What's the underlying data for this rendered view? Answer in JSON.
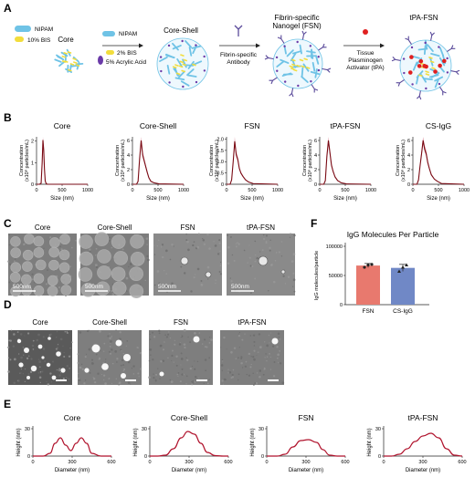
{
  "panel_letters": {
    "A": "A",
    "B": "B",
    "C": "C",
    "D": "D",
    "E": "E",
    "F": "F"
  },
  "panelA": {
    "nipam_1": "NIPAM",
    "bis_1": "10% BIS",
    "core": "Core",
    "nipam_2": "NIPAM",
    "bis_2": "2% BIS",
    "acrylic": "5% Acrylic Acid",
    "core_shell": "Core-Shell",
    "fsn_title_1": "Fibrin-specific",
    "fsn_title_2": "Nanogel (FSN)",
    "antibody_1": "Fibrin-specific",
    "antibody_2": "Antibody",
    "tpa_1": "Tissue",
    "tpa_2": "Plasminogen",
    "tpa_3": "Activator (tPA)",
    "tpa_fsn": "tPA-FSN",
    "colors": {
      "polymer": "#6fc3e6",
      "bis": "#f2dd3c",
      "acrylic": "#6a3aa8",
      "antibody": "#5a4a9a",
      "tpa": "#e02020"
    }
  },
  "panelB": {
    "ylabel_1": "Concentration",
    "ylabel_2": "(x10⁸ particles/mL)",
    "xlabel": "Size (nm)",
    "xticks": [
      "0",
      "500",
      "1000"
    ],
    "line_color": "#7a0a14",
    "charts": [
      {
        "title": "Core",
        "yticks": [
          "0",
          "1",
          "2"
        ],
        "ymax": 2.2
      },
      {
        "title": "Core-Shell",
        "yticks": [
          "0",
          "2",
          "4",
          "6"
        ],
        "ymax": 6.5
      },
      {
        "title": "FSN",
        "yticks": [
          "0",
          "0.5",
          "1.0",
          "1.5",
          "2.0"
        ],
        "ymax": 2.1
      },
      {
        "title": "tPA-FSN",
        "yticks": [
          "0",
          "2",
          "4",
          "6"
        ],
        "ymax": 6.5
      },
      {
        "title": "CS-IgG",
        "yticks": [
          "0",
          "2",
          "4",
          "6"
        ],
        "ymax": 6.5
      }
    ]
  },
  "panelC": {
    "titles": [
      "Core",
      "Core-Shell",
      "FSN",
      "tPA-FSN"
    ],
    "scale": "500nm"
  },
  "panelD": {
    "titles": [
      "Core",
      "Core-Shell",
      "FSN",
      "tPA-FSN"
    ]
  },
  "panelE": {
    "ylabel": "Height (nm)",
    "xlabel": "Diameter (nm)",
    "xticks": [
      "0",
      "300",
      "600"
    ],
    "yticks": [
      "0",
      "30"
    ],
    "titles": [
      "Core",
      "Core-Shell",
      "FSN",
      "tPA-FSN"
    ],
    "line_color": "#b0122c"
  },
  "panelF": {
    "title": "IgG Molecules Per Particle",
    "ylabel": "IgG molecules/particle",
    "yticks": [
      "0",
      "50000",
      "100000"
    ],
    "ylim": [
      0,
      100000
    ]
  },
  "chart_data": [
    {
      "type": "line",
      "title": "Core",
      "xlabel": "Size (nm)",
      "ylabel": "Concentration (x10⁸ particles/mL)",
      "xlim": [
        0,
        1000
      ],
      "ylim": [
        0,
        2.2
      ],
      "x": [
        0,
        60,
        90,
        110,
        125,
        140,
        155,
        170,
        190,
        220,
        300,
        1000
      ],
      "values": [
        0,
        0,
        0.05,
        1.0,
        2.05,
        1.6,
        0.7,
        0.15,
        0.02,
        0,
        0,
        0
      ]
    },
    {
      "type": "line",
      "title": "Core-Shell",
      "xlabel": "Size (nm)",
      "ylabel": "Concentration (x10⁸ particles/mL)",
      "xlim": [
        0,
        1000
      ],
      "ylim": [
        0,
        6.5
      ],
      "x": [
        0,
        80,
        110,
        140,
        170,
        200,
        230,
        260,
        290,
        320,
        360,
        420,
        520,
        1000
      ],
      "values": [
        0,
        0,
        0.4,
        3.5,
        6.0,
        4.0,
        3.2,
        2.4,
        1.6,
        0.9,
        0.4,
        0.2,
        0.05,
        0
      ]
    },
    {
      "type": "line",
      "title": "FSN",
      "xlabel": "Size (nm)",
      "ylabel": "Concentration (x10⁸ particles/mL)",
      "xlim": [
        0,
        1000
      ],
      "ylim": [
        0,
        2.1
      ],
      "x": [
        0,
        70,
        100,
        130,
        160,
        190,
        220,
        250,
        280,
        320,
        370,
        430,
        520,
        1000
      ],
      "values": [
        0,
        0,
        0.2,
        1.0,
        1.9,
        1.3,
        1.1,
        0.7,
        0.5,
        0.35,
        0.2,
        0.1,
        0.03,
        0
      ]
    },
    {
      "type": "line",
      "title": "tPA-FSN",
      "xlabel": "Size (nm)",
      "ylabel": "Concentration (x10⁸ particles/mL)",
      "xlim": [
        0,
        1000
      ],
      "ylim": [
        0,
        6.5
      ],
      "x": [
        0,
        80,
        110,
        140,
        170,
        200,
        230,
        260,
        300,
        350,
        420,
        520,
        1000
      ],
      "values": [
        0,
        0,
        0.5,
        3.8,
        6.0,
        4.3,
        2.6,
        1.8,
        1.0,
        0.5,
        0.2,
        0.05,
        0
      ]
    },
    {
      "type": "line",
      "title": "CS-IgG",
      "xlabel": "Size (nm)",
      "ylabel": "Concentration (x10⁸ particles/mL)",
      "xlim": [
        0,
        1000
      ],
      "ylim": [
        0,
        6.5
      ],
      "x": [
        0,
        80,
        110,
        140,
        170,
        200,
        230,
        260,
        290,
        320,
        360,
        420,
        480,
        560,
        1000
      ],
      "values": [
        0,
        0,
        0.6,
        2.5,
        4.2,
        6.0,
        4.8,
        4.2,
        3.0,
        2.2,
        1.3,
        0.7,
        0.4,
        0.1,
        0
      ]
    },
    {
      "type": "line",
      "title": "Core",
      "xlabel": "Diameter (nm)",
      "ylabel": "Height (nm)",
      "xlim": [
        0,
        600
      ],
      "ylim": [
        0,
        30
      ],
      "x": [
        0,
        80,
        130,
        170,
        210,
        250,
        290,
        330,
        370,
        410,
        450,
        520,
        600
      ],
      "values": [
        0,
        0,
        3,
        14,
        20,
        12,
        6,
        14,
        20,
        14,
        3,
        0,
        0
      ]
    },
    {
      "type": "line",
      "title": "Core-Shell",
      "xlabel": "Diameter (nm)",
      "ylabel": "Height (nm)",
      "xlim": [
        0,
        600
      ],
      "ylim": [
        0,
        30
      ],
      "x": [
        0,
        60,
        120,
        180,
        240,
        290,
        340,
        390,
        440,
        500,
        560,
        600
      ],
      "values": [
        0,
        0,
        1,
        8,
        20,
        27,
        24,
        14,
        4,
        0.5,
        0,
        0
      ]
    },
    {
      "type": "line",
      "title": "FSN",
      "xlabel": "Diameter (nm)",
      "ylabel": "Height (nm)",
      "xlim": [
        0,
        600
      ],
      "ylim": [
        0,
        30
      ],
      "x": [
        0,
        80,
        140,
        200,
        260,
        320,
        380,
        430,
        480,
        540,
        600
      ],
      "values": [
        0,
        0,
        2,
        10,
        17,
        18,
        15,
        7,
        1,
        0,
        0
      ]
    },
    {
      "type": "line",
      "title": "tPA-FSN",
      "xlabel": "Diameter (nm)",
      "ylabel": "Height (nm)",
      "xlim": [
        0,
        600
      ],
      "ylim": [
        0,
        30
      ],
      "x": [
        0,
        60,
        120,
        180,
        240,
        300,
        360,
        420,
        480,
        540,
        600
      ],
      "values": [
        0,
        0,
        2,
        8,
        16,
        22,
        25,
        20,
        8,
        1,
        0
      ]
    },
    {
      "type": "bar",
      "title": "IgG Molecules Per Particle",
      "ylabel": "IgG molecules/particle",
      "ylim": [
        0,
        100000
      ],
      "categories": [
        "FSN",
        "CS-IgG"
      ],
      "values": [
        67000,
        63000
      ],
      "errors": [
        3500,
        6000
      ],
      "points": [
        [
          64000,
          68000,
          69000
        ],
        [
          57000,
          64000,
          68000
        ]
      ],
      "colors": [
        "#e8796e",
        "#7088c6"
      ]
    }
  ]
}
